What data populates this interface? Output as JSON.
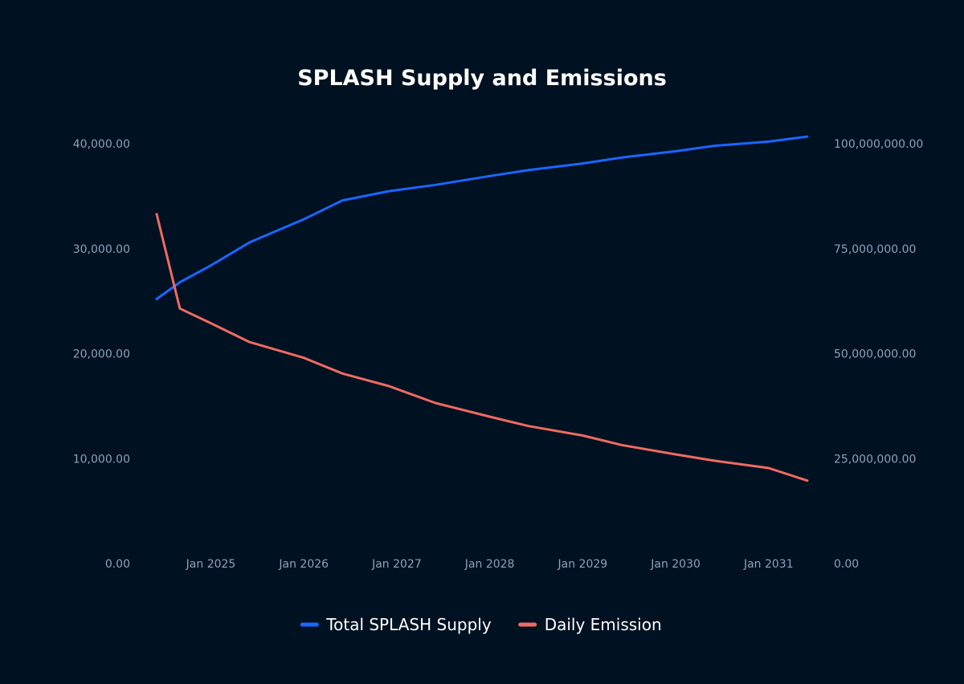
{
  "chart_data": {
    "type": "line",
    "title": "SPLASH Supply and Emissions",
    "x": [
      "2024-06",
      "2024-09",
      "2025-01",
      "2025-06",
      "2026-01",
      "2026-06",
      "2026-12",
      "2027-06",
      "2028-01",
      "2028-06",
      "2029-01",
      "2029-06",
      "2030-01",
      "2030-06",
      "2031-01",
      "2031-06"
    ],
    "x_tick_labels": [
      "Jan 2025",
      "Jan 2026",
      "Jan 2027",
      "Jan 2028",
      "Jan 2029",
      "Jan 2030",
      "Jan 2031"
    ],
    "y_left": {
      "ylim": [
        0,
        40000
      ],
      "tick_labels": [
        "0.00",
        "10,000.00",
        "20,000.00",
        "30,000.00",
        "40,000.00"
      ]
    },
    "y_right": {
      "ylim": [
        0,
        100000000
      ],
      "tick_labels": [
        "0.00",
        "25,000,000.00",
        "50,000,000.00",
        "75,000,000.00",
        "100,000,000.00"
      ]
    },
    "series": [
      {
        "name": "Total SPLASH Supply",
        "axis": "right",
        "color": "#1a66ff",
        "values": [
          63000000,
          67000000,
          71000000,
          76500000,
          82000000,
          86500000,
          88700000,
          90200000,
          92300000,
          93700000,
          95300000,
          96700000,
          98200000,
          99500000,
          100500000,
          101700000
        ]
      },
      {
        "name": "Daily Emission",
        "axis": "left",
        "color": "#ee6b60",
        "values": [
          33300,
          24300,
          22900,
          21100,
          19600,
          18100,
          16900,
          15300,
          14000,
          13100,
          12200,
          11300,
          10400,
          9800,
          9100,
          7900
        ]
      }
    ],
    "legend": [
      "Total SPLASH Supply",
      "Daily Emission"
    ],
    "legend_position": "bottom"
  }
}
